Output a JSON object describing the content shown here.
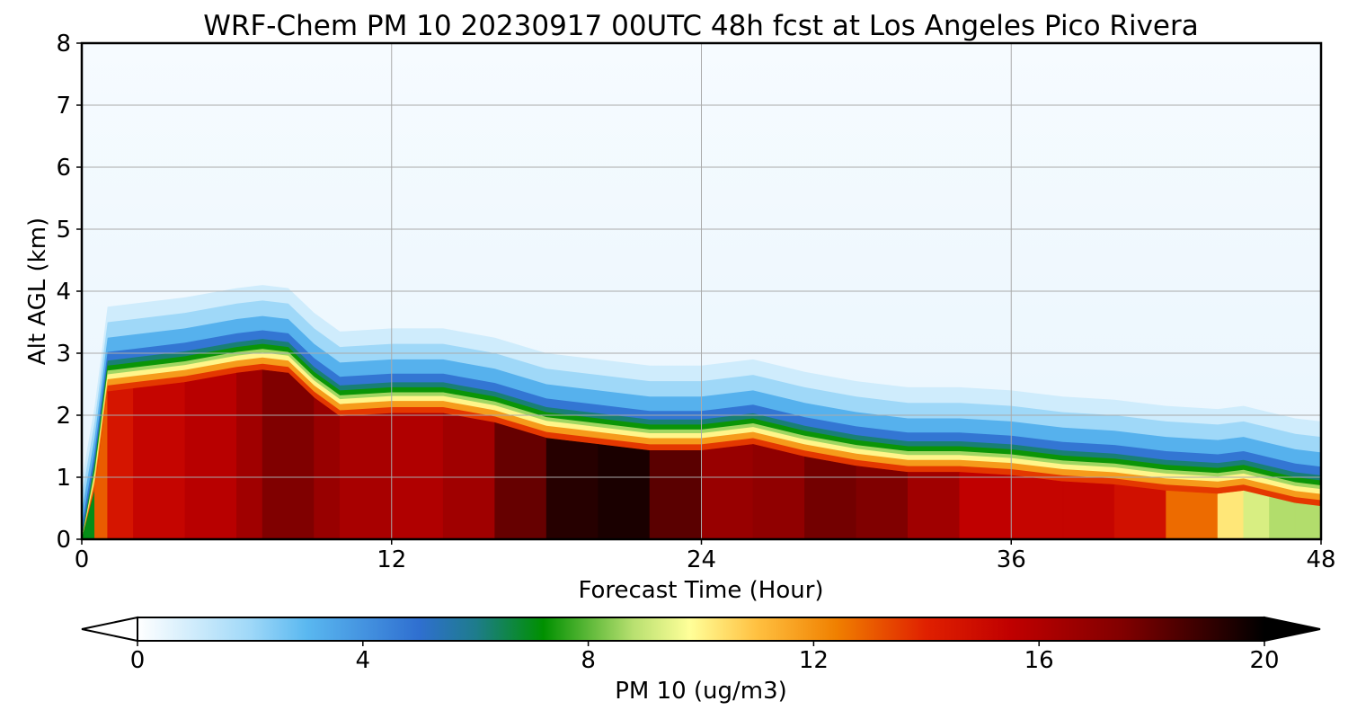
{
  "chart_data": {
    "type": "heatmap",
    "title": "WRF-Chem PM 10  20230917 00UTC 48h fcst at Los Angeles Pico Rivera",
    "xlabel": "Forecast Time (Hour)",
    "ylabel": "Alt AGL (km)",
    "xlim": [
      0,
      48
    ],
    "ylim": [
      0,
      8
    ],
    "xticks": [
      "0",
      "12",
      "24",
      "36",
      "48"
    ],
    "yticks": [
      "0",
      "1",
      "2",
      "3",
      "4",
      "5",
      "6",
      "7",
      "8"
    ],
    "grid": true,
    "colorbar": {
      "label": "PM 10  (ug/m3)",
      "range": [
        0,
        20
      ],
      "ticks": [
        "0",
        "4",
        "8",
        "12",
        "16",
        "20"
      ],
      "extend": "both",
      "colors": [
        {
          "value": 0,
          "color": "#ffffff"
        },
        {
          "value": 2,
          "color": "#9fd8f8"
        },
        {
          "value": 3,
          "color": "#5ab8f0"
        },
        {
          "value": 5,
          "color": "#2f6fd0"
        },
        {
          "value": 6,
          "color": "#1e7c8c"
        },
        {
          "value": 7.2,
          "color": "#009000"
        },
        {
          "value": 8.8,
          "color": "#b8e070"
        },
        {
          "value": 9.8,
          "color": "#ffff99"
        },
        {
          "value": 11,
          "color": "#ffc040"
        },
        {
          "value": 12.4,
          "color": "#f08000"
        },
        {
          "value": 14,
          "color": "#e02000"
        },
        {
          "value": 15.5,
          "color": "#c00000"
        },
        {
          "value": 17.5,
          "color": "#800000"
        },
        {
          "value": 20,
          "color": "#000000"
        }
      ]
    },
    "field": {
      "times": [
        0,
        0.5,
        1,
        2,
        4,
        6,
        7,
        8,
        9,
        10,
        12,
        14,
        16,
        18,
        20,
        22,
        24,
        26,
        28,
        30,
        32,
        34,
        36,
        38,
        40,
        42,
        44,
        45,
        46,
        47,
        48
      ],
      "top_km": [
        0,
        1.2,
        2.8,
        2.85,
        2.95,
        3.1,
        3.15,
        3.1,
        2.7,
        2.4,
        2.45,
        2.45,
        2.3,
        2.05,
        1.95,
        1.85,
        1.85,
        1.95,
        1.75,
        1.6,
        1.5,
        1.5,
        1.45,
        1.35,
        1.3,
        1.2,
        1.15,
        1.2,
        1.1,
        1.0,
        0.95
      ],
      "core_value": [
        2,
        12,
        14,
        15,
        15.5,
        16,
        17,
        18,
        17,
        16.5,
        16,
        16,
        17,
        19,
        19.5,
        19.5,
        17,
        16.5,
        17.5,
        18,
        17,
        16,
        15,
        15.5,
        15,
        14.5,
        11,
        9.5,
        9,
        8.5,
        9
      ]
    }
  }
}
